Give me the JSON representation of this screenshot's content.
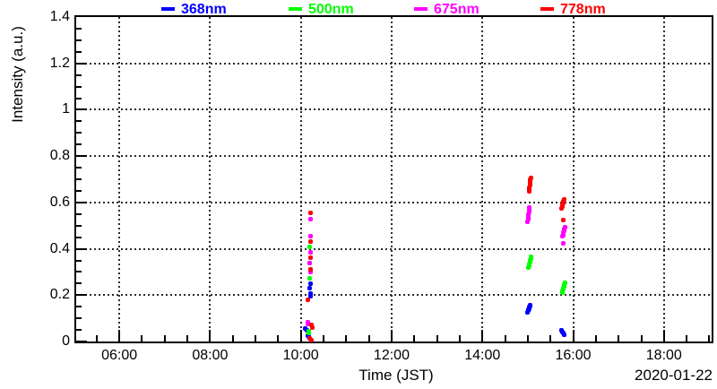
{
  "axes": {
    "x": {
      "label": "Time (JST)",
      "date_label": "2020-01-22",
      "min_hours": 5.05,
      "max_hours": 19.05,
      "minor_step_hours": 0.5,
      "major_ticks": [
        {
          "hours": 6,
          "label": "06:00"
        },
        {
          "hours": 8,
          "label": "08:00"
        },
        {
          "hours": 10,
          "label": "10:00"
        },
        {
          "hours": 12,
          "label": "12:00"
        },
        {
          "hours": 14,
          "label": "14:00"
        },
        {
          "hours": 16,
          "label": "16:00"
        },
        {
          "hours": 18,
          "label": "18:00"
        }
      ]
    },
    "y": {
      "label": "Intensity (a.u.)",
      "min": 0,
      "max": 1.4,
      "minor_step": 0.05,
      "major_ticks": [
        {
          "value": 0,
          "label": "0"
        },
        {
          "value": 0.2,
          "label": "0.2"
        },
        {
          "value": 0.4,
          "label": "0.4"
        },
        {
          "value": 0.6,
          "label": "0.6"
        },
        {
          "value": 0.8,
          "label": "0.8"
        },
        {
          "value": 1,
          "label": "1"
        },
        {
          "value": 1.2,
          "label": "1.2"
        },
        {
          "value": 1.4,
          "label": "1.4"
        }
      ]
    }
  },
  "legend": [
    {
      "label": "368nm",
      "color": "#0000ff"
    },
    {
      "label": "500nm",
      "color": "#00ff00"
    },
    {
      "label": "675nm",
      "color": "#ff00ff"
    },
    {
      "label": "778nm",
      "color": "#ff0000"
    }
  ],
  "chart_data": {
    "type": "scatter",
    "title": "",
    "xlabel": "Time (JST)",
    "ylabel": "Intensity (a.u.)",
    "date": "2020-01-22",
    "x_unit": "decimal hours (JST)",
    "xlim_hours": [
      5.05,
      19.05
    ],
    "ylim": [
      0,
      1.4
    ],
    "grid": "dotted major gridlines both axes",
    "legend_position": "top, horizontal row",
    "series": [
      {
        "name": "368nm",
        "color": "#0000ff",
        "points": [
          [
            10.21,
            0.251
          ],
          [
            10.2,
            0.23
          ],
          [
            10.21,
            0.207
          ],
          [
            10.21,
            0.195
          ],
          [
            10.1,
            0.058
          ],
          [
            10.13,
            0.05
          ],
          [
            10.15,
            0.026
          ],
          [
            10.17,
            0.02
          ],
          [
            15.0,
            0.127
          ],
          [
            15.01,
            0.132
          ],
          [
            15.02,
            0.137
          ],
          [
            15.03,
            0.143
          ],
          [
            15.04,
            0.148
          ],
          [
            15.05,
            0.153
          ],
          [
            15.06,
            0.158
          ],
          [
            15.74,
            0.048
          ],
          [
            15.76,
            0.042
          ],
          [
            15.78,
            0.035
          ],
          [
            15.8,
            0.029
          ]
        ]
      },
      {
        "name": "500nm",
        "color": "#00ff00",
        "points": [
          [
            10.2,
            0.408
          ],
          [
            10.2,
            0.337
          ],
          [
            10.19,
            0.274
          ],
          [
            10.17,
            0.045
          ],
          [
            10.18,
            0.037
          ],
          [
            15.02,
            0.32
          ],
          [
            15.03,
            0.327
          ],
          [
            15.04,
            0.334
          ],
          [
            15.05,
            0.341
          ],
          [
            15.06,
            0.349
          ],
          [
            15.07,
            0.356
          ],
          [
            15.07,
            0.364
          ],
          [
            15.76,
            0.211
          ],
          [
            15.77,
            0.218
          ],
          [
            15.78,
            0.225
          ],
          [
            15.79,
            0.232
          ],
          [
            15.8,
            0.239
          ],
          [
            15.81,
            0.247
          ],
          [
            15.82,
            0.254
          ]
        ]
      },
      {
        "name": "675nm",
        "color": "#ff00ff",
        "points": [
          [
            10.21,
            0.528
          ],
          [
            10.21,
            0.455
          ],
          [
            10.21,
            0.383
          ],
          [
            10.2,
            0.34
          ],
          [
            10.21,
            0.3
          ],
          [
            10.16,
            0.085
          ],
          [
            10.15,
            0.077
          ],
          [
            15.0,
            0.517
          ],
          [
            15.01,
            0.527
          ],
          [
            15.02,
            0.537
          ],
          [
            15.02,
            0.547
          ],
          [
            15.03,
            0.557
          ],
          [
            15.04,
            0.567
          ],
          [
            15.04,
            0.577
          ],
          [
            15.78,
            0.423
          ],
          [
            15.77,
            0.453
          ],
          [
            15.78,
            0.46
          ],
          [
            15.79,
            0.468
          ],
          [
            15.8,
            0.476
          ],
          [
            15.81,
            0.485
          ],
          [
            15.82,
            0.493
          ]
        ]
      },
      {
        "name": "778nm",
        "color": "#ff0000",
        "points": [
          [
            10.22,
            0.556
          ],
          [
            10.22,
            0.433
          ],
          [
            10.22,
            0.361
          ],
          [
            10.22,
            0.311
          ],
          [
            10.16,
            0.18
          ],
          [
            10.24,
            0.07
          ],
          [
            10.25,
            0.06
          ],
          [
            10.2,
            0.012
          ],
          [
            10.23,
            0.005
          ],
          [
            15.03,
            0.649
          ],
          [
            15.04,
            0.657
          ],
          [
            15.04,
            0.665
          ],
          [
            15.05,
            0.673
          ],
          [
            15.05,
            0.681
          ],
          [
            15.06,
            0.69
          ],
          [
            15.06,
            0.698
          ],
          [
            15.07,
            0.706
          ],
          [
            15.79,
            0.525
          ],
          [
            15.75,
            0.574
          ],
          [
            15.76,
            0.581
          ],
          [
            15.77,
            0.589
          ],
          [
            15.78,
            0.597
          ],
          [
            15.79,
            0.605
          ],
          [
            15.8,
            0.613
          ]
        ]
      }
    ]
  }
}
